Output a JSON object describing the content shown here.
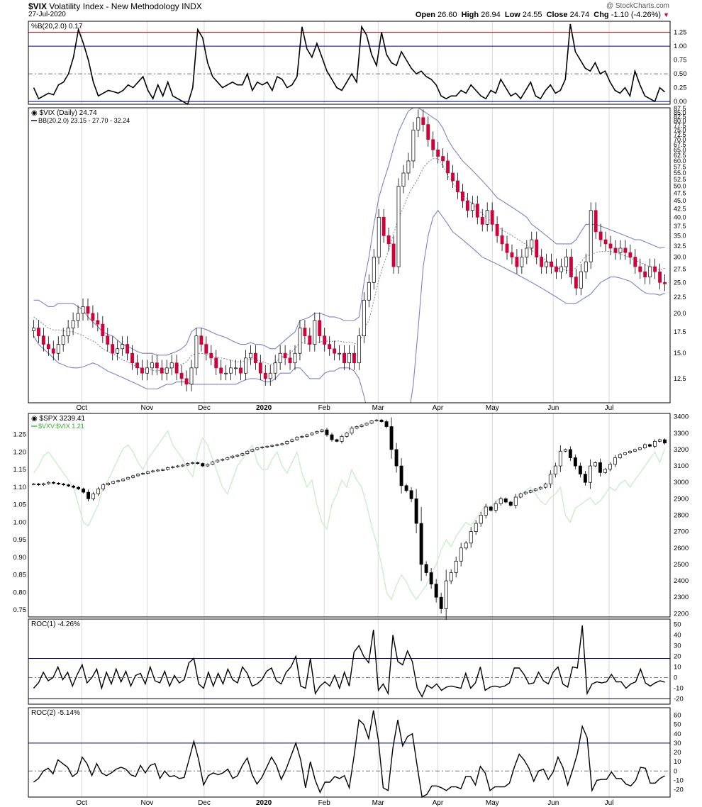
{
  "header": {
    "symbol": "$VIX",
    "name": "Volatility Index - New Methodology",
    "exchange": "INDX",
    "date": "27-Jul-2020",
    "watermark": "@ StockCharts.com",
    "open_label": "Open",
    "open": "26.60",
    "high_label": "High",
    "high": "26.94",
    "low_label": "Low",
    "low": "24.55",
    "close_label": "Close",
    "close": "24.74",
    "chg_label": "Chg",
    "chg": "-1.10 (-4.26%)",
    "chg_arrow": "▼"
  },
  "colors": {
    "up": "#000000",
    "down": "#d00038",
    "bb": "#8080c8",
    "ratio": "#c8f0c8",
    "red_line": "#d00000",
    "blue_line": "#000080"
  },
  "chart_data": [
    {
      "type": "line",
      "name": "pctb_panel",
      "legend": "%B(20,2.0) 0.17",
      "ylim": [
        -0.05,
        1.45
      ],
      "ticks": [
        "1.25",
        "1.00",
        "0.75",
        "0.50",
        "0.25",
        "0.00"
      ],
      "tick_values": [
        1.25,
        1.0,
        0.75,
        0.5,
        0.25,
        0.0
      ],
      "ref_lines": [
        1.25,
        1.0,
        0.5,
        0.0
      ],
      "values": [
        0.25,
        0.05,
        0.1,
        0.15,
        0.12,
        0.3,
        0.35,
        0.5,
        0.8,
        1.3,
        1.05,
        0.75,
        0.35,
        0.1,
        0.15,
        0.2,
        0.18,
        0.15,
        0.2,
        0.3,
        0.25,
        0.35,
        0.45,
        0.2,
        0.05,
        0.3,
        0.1,
        0.35,
        0.1,
        0.05,
        0.0,
        -0.05,
        0.25,
        1.3,
        1.15,
        0.7,
        0.45,
        0.35,
        0.25,
        0.3,
        0.35,
        0.3,
        0.3,
        0.5,
        0.2,
        0.35,
        0.3,
        0.35,
        0.2,
        0.45,
        0.4,
        0.25,
        0.3,
        0.45,
        1.35,
        0.95,
        0.8,
        1.05,
        0.8,
        0.55,
        0.4,
        0.25,
        0.2,
        0.35,
        0.5,
        0.35,
        1.35,
        1.2,
        0.85,
        0.65,
        1.25,
        0.85,
        0.7,
        0.65,
        0.9,
        0.75,
        0.6,
        0.5,
        0.55,
        0.45,
        0.4,
        0.3,
        0.1,
        0.05,
        0.1,
        0.1,
        0.2,
        0.15,
        0.3,
        0.2,
        0.1,
        0.05,
        0.2,
        0.15,
        0.4,
        0.25,
        0.1,
        0.15,
        0.05,
        0.2,
        0.35,
        0.1,
        0.05,
        0.2,
        0.3,
        0.15,
        0.2,
        0.4,
        1.4,
        0.9,
        0.75,
        0.6,
        0.55,
        0.7,
        0.5,
        0.55,
        0.35,
        0.2,
        0.15,
        0.25,
        0.1,
        0.55,
        0.3,
        0.1,
        0.05,
        0.0,
        0.25,
        0.17
      ],
      "xlabels": [
        "Oct",
        "Nov",
        "Dec",
        "2020",
        "Feb",
        "Mar",
        "Apr",
        "May",
        "Jun",
        "Jul"
      ],
      "xlabel_fracs": [
        0.083,
        0.185,
        0.274,
        0.367,
        0.461,
        0.545,
        0.638,
        0.723,
        0.818,
        0.905
      ]
    },
    {
      "type": "candlestick",
      "name": "vix_panel",
      "legend": "$VIX (Daily) 24.74",
      "legend2": "BB(20,2.0) 23.15 - 27.70 - 32.24",
      "ylim": [
        10.5,
        88
      ],
      "log": true,
      "ticks": [
        "87.5",
        "85.0",
        "82.5",
        "80.0",
        "77.5",
        "75.0",
        "72.5",
        "70.0",
        "67.5",
        "65.0",
        "62.5",
        "60.0",
        "57.5",
        "55.0",
        "52.5",
        "50.0",
        "47.5",
        "45.0",
        "42.5",
        "40.0",
        "37.5",
        "35.0",
        "32.5",
        "30.0",
        "27.5",
        "25.0",
        "22.5",
        "20.0",
        "17.5",
        "15.0",
        "12.5"
      ],
      "tick_values": [
        87.5,
        85,
        82.5,
        80,
        77.5,
        75,
        72.5,
        70,
        67.5,
        65,
        62.5,
        60,
        57.5,
        55,
        52.5,
        50,
        47.5,
        45,
        42.5,
        40,
        37.5,
        35,
        32.5,
        30,
        27.5,
        25,
        22.5,
        20,
        17.5,
        15,
        12.5
      ],
      "close": [
        18,
        17,
        16,
        15.5,
        15,
        16,
        17,
        18,
        19,
        20,
        21,
        20,
        19,
        18.5,
        17,
        16,
        15,
        15.5,
        16,
        15,
        14,
        13.5,
        13,
        13.5,
        14,
        13.5,
        13,
        13.5,
        14,
        13,
        12.5,
        12,
        13.5,
        17,
        16,
        15,
        14.5,
        13.5,
        13,
        13,
        13.5,
        13.5,
        13,
        14.5,
        15,
        14,
        13,
        12.5,
        13,
        14,
        15,
        14.5,
        14,
        15,
        18,
        17,
        16,
        19,
        17,
        16,
        15.5,
        15,
        15,
        14,
        15,
        14,
        17,
        22,
        25,
        30,
        40,
        35,
        33,
        28,
        50,
        55,
        60,
        75,
        82,
        78,
        70,
        65,
        62,
        60,
        55,
        52,
        48,
        45,
        42,
        44,
        40,
        38,
        42,
        38,
        35,
        33,
        31,
        30,
        28,
        30,
        32,
        34,
        30,
        28,
        29,
        28,
        27,
        28,
        30,
        26,
        24,
        27,
        29,
        42,
        36,
        34,
        33,
        32,
        31,
        32,
        31,
        30,
        28,
        27,
        26,
        28,
        27,
        25,
        24.74
      ],
      "bb_upper": [
        22,
        22,
        21.5,
        21,
        21,
        21.5,
        21.5,
        21.5,
        21.5,
        21,
        20.5,
        19.5,
        18.8,
        18.2,
        17.5,
        17.2,
        17,
        16.5,
        16,
        15.8,
        15.5,
        15.2,
        15,
        15,
        15,
        14.8,
        14.8,
        14.8,
        15,
        15.2,
        15.5,
        16,
        17.5,
        18,
        18,
        17.8,
        17.5,
        17.2,
        17,
        16.8,
        16.5,
        16.2,
        16,
        16,
        16.2,
        16,
        16,
        15.8,
        15.5,
        15.5,
        16,
        16.5,
        17,
        17.5,
        19,
        19.2,
        19.5,
        20,
        20,
        19.8,
        19.5,
        19.5,
        19.3,
        19,
        19,
        19,
        19.5,
        25,
        30,
        38,
        46,
        52,
        58,
        66,
        74,
        80,
        86,
        88,
        88,
        86,
        84,
        82,
        80,
        76,
        70,
        66,
        63,
        60,
        58,
        56,
        54,
        52,
        50,
        48,
        46,
        45,
        44,
        43,
        42,
        41,
        40,
        38,
        37,
        36,
        35,
        34,
        33,
        33,
        33,
        33,
        34,
        36,
        38,
        38,
        38,
        37.5,
        37,
        36.5,
        36,
        35.5,
        35,
        34.5,
        34,
        34,
        33.5,
        33,
        32.5,
        32,
        32.24
      ],
      "bb_lower": [
        17,
        16,
        15.5,
        15,
        14.5,
        14,
        13.8,
        13.6,
        13.5,
        13.5,
        13.6,
        13.8,
        14,
        13.8,
        13.5,
        13.2,
        13,
        12.8,
        12.6,
        12.4,
        12.2,
        12,
        11.8,
        11.6,
        11.6,
        11.6,
        11.8,
        12,
        12,
        12.2,
        12.2,
        12.2,
        12,
        12,
        12,
        12,
        12,
        12,
        12,
        12,
        12,
        12,
        12.2,
        12.4,
        12.5,
        12.5,
        12.4,
        12.2,
        12.2,
        12.5,
        13,
        13,
        13,
        13.5,
        13.5,
        13,
        12.5,
        12.5,
        12.5,
        13,
        13.2,
        13.2,
        13.5,
        13.5,
        13.5,
        13.2,
        12.5,
        11,
        8,
        6,
        5,
        5,
        5,
        5,
        5,
        6,
        8,
        12,
        18,
        28,
        35,
        40,
        42,
        40,
        38,
        36,
        35,
        34,
        33,
        32,
        31,
        30,
        29.5,
        29,
        28.5,
        28,
        27.5,
        27,
        26.5,
        26,
        25.5,
        25,
        24.5,
        24,
        23.5,
        23,
        22.5,
        22,
        21.5,
        21.5,
        21.5,
        22,
        22.5,
        23,
        24,
        25,
        25.5,
        26,
        26,
        25.8,
        25.5,
        25.2,
        24.5,
        23.8,
        23.2,
        23,
        23,
        22.8,
        23.15
      ],
      "xlabels": [
        "Oct",
        "Nov",
        "Dec",
        "2020",
        "Feb",
        "Mar",
        "Apr",
        "May",
        "Jun",
        "Jul"
      ]
    },
    {
      "type": "candlestick",
      "name": "spx_panel",
      "legend": "$SPX 3239.41",
      "legend2": "$VXV:$VIX 1.21",
      "ylim_right": [
        2180,
        3420
      ],
      "ticks_right": [
        "3400",
        "3300",
        "3200",
        "3100",
        "3000",
        "2900",
        "2800",
        "2700",
        "2600",
        "2500",
        "2400",
        "2300",
        "2200"
      ],
      "tick_values_right": [
        3400,
        3300,
        3200,
        3100,
        3000,
        2900,
        2800,
        2700,
        2600,
        2500,
        2400,
        2300,
        2200
      ],
      "ylim_left": [
        0.73,
        1.31
      ],
      "ticks_left": [
        "1.25",
        "1.20",
        "1.15",
        "1.10",
        "1.05",
        "1.00",
        "0.95",
        "0.90",
        "0.85",
        "0.80",
        "0.75"
      ],
      "tick_values_left": [
        1.25,
        1.2,
        1.15,
        1.1,
        1.05,
        1.0,
        0.95,
        0.9,
        0.85,
        0.8,
        0.75
      ],
      "spx_close": [
        2990,
        2985,
        2992,
        3000,
        2995,
        2990,
        2985,
        2978,
        2970,
        2960,
        2940,
        2900,
        2930,
        2960,
        2985,
        2995,
        3005,
        3010,
        3020,
        3030,
        3040,
        3050,
        3055,
        3065,
        3070,
        3075,
        3078,
        3090,
        3095,
        3100,
        3105,
        3115,
        3120,
        3115,
        3100,
        3110,
        3125,
        3135,
        3140,
        3150,
        3160,
        3165,
        3175,
        3190,
        3200,
        3210,
        3215,
        3220,
        3225,
        3230,
        3235,
        3250,
        3260,
        3275,
        3280,
        3290,
        3300,
        3310,
        3320,
        3290,
        3260,
        3250,
        3280,
        3300,
        3330,
        3340,
        3350,
        3360,
        3375,
        3380,
        3370,
        3340,
        3200,
        3100,
        2980,
        2950,
        2900,
        2750,
        2500,
        2450,
        2380,
        2300,
        2230,
        2400,
        2450,
        2520,
        2600,
        2630,
        2700,
        2750,
        2800,
        2850,
        2830,
        2870,
        2900,
        2880,
        2860,
        2910,
        2930,
        2940,
        2950,
        2960,
        2970,
        2990,
        3050,
        3100,
        3190,
        3200,
        3150,
        3100,
        3050,
        3000,
        3100,
        3120,
        3060,
        3080,
        3110,
        3150,
        3170,
        3180,
        3190,
        3200,
        3210,
        3230,
        3220,
        3250,
        3260,
        3239.41
      ],
      "ratio": [
        1.14,
        1.16,
        1.19,
        1.2,
        1.18,
        1.16,
        1.14,
        1.12,
        1.1,
        1.05,
        1.0,
        0.99,
        1.02,
        1.05,
        1.1,
        1.12,
        1.15,
        1.18,
        1.21,
        1.22,
        1.2,
        1.17,
        1.15,
        1.18,
        1.2,
        1.22,
        1.24,
        1.26,
        1.22,
        1.2,
        1.18,
        1.15,
        1.13,
        1.2,
        1.24,
        1.22,
        1.18,
        1.14,
        1.1,
        1.08,
        1.12,
        1.16,
        1.18,
        1.2,
        1.22,
        1.17,
        1.15,
        1.15,
        1.18,
        1.2,
        1.16,
        1.14,
        1.17,
        1.2,
        1.14,
        1.1,
        1.12,
        1.05,
        1.0,
        0.98,
        1.05,
        1.08,
        1.12,
        1.1,
        1.15,
        1.12,
        1.1,
        1.05,
        0.99,
        0.94,
        0.88,
        0.8,
        0.78,
        0.82,
        0.85,
        0.83,
        0.8,
        0.78,
        0.8,
        0.82,
        0.85,
        0.88,
        0.92,
        0.95,
        0.93,
        0.96,
        0.98,
        1.0,
        0.99,
        1.01,
        1.03,
        1.05,
        1.04,
        1.06,
        1.07,
        1.06,
        1.05,
        1.07,
        1.08,
        1.09,
        1.1,
        1.08,
        1.06,
        1.05,
        1.07,
        1.08,
        1.1,
        1.02,
        1.0,
        1.04,
        1.05,
        1.06,
        1.07,
        1.05,
        1.06,
        1.08,
        1.1,
        1.09,
        1.11,
        1.12,
        1.1,
        1.12,
        1.14,
        1.16,
        1.18,
        1.2,
        1.17,
        1.21
      ],
      "xlabels": [
        "Oct",
        "Nov",
        "Dec",
        "2020",
        "Feb",
        "Mar",
        "Apr",
        "May",
        "Jun",
        "Jul"
      ]
    },
    {
      "type": "line",
      "name": "roc1_panel",
      "legend": "ROC(1) -4.26%",
      "ylim": [
        -25,
        55
      ],
      "ticks": [
        "50",
        "40",
        "30",
        "20",
        "10",
        "0",
        "-10",
        "-20"
      ],
      "tick_values": [
        50,
        40,
        30,
        20,
        10,
        0,
        -10,
        -20
      ],
      "ref_lines": [
        18,
        0,
        -20
      ],
      "values": [
        -10,
        -5,
        5,
        -3,
        0,
        10,
        -2,
        5,
        -8,
        3,
        12,
        -5,
        0,
        8,
        -10,
        5,
        -6,
        8,
        -4,
        6,
        -8,
        2,
        4,
        -6,
        10,
        -3,
        -5,
        6,
        -8,
        2,
        -5,
        -2,
        14,
        18,
        -6,
        -10,
        5,
        -8,
        4,
        -6,
        8,
        -2,
        -5,
        10,
        4,
        -8,
        -6,
        -2,
        6,
        9,
        -3,
        -6,
        5,
        10,
        20,
        -8,
        -10,
        18,
        -15,
        -8,
        -4,
        -8,
        2,
        -10,
        5,
        -8,
        24,
        30,
        20,
        14,
        45,
        -12,
        -6,
        -15,
        40,
        15,
        12,
        25,
        15,
        -10,
        -18,
        -7,
        -10,
        -6,
        -12,
        -9,
        -8,
        -9,
        -10,
        4,
        -10,
        -5,
        10,
        -12,
        -9,
        -8,
        -9,
        -8,
        -5,
        9,
        9,
        3,
        -6,
        -5,
        5,
        -3,
        -6,
        5,
        10,
        -6,
        -9,
        10,
        9,
        49,
        -15,
        -6,
        -4,
        -5,
        -4,
        3,
        -4,
        -4,
        -10,
        -6,
        -4,
        8,
        -5,
        -8,
        -5,
        -3,
        -4.26
      ]
    },
    {
      "type": "line",
      "name": "roc2_panel",
      "legend": "ROC(2) -5.14%",
      "ylim": [
        -28,
        68
      ],
      "ticks": [
        "60",
        "50",
        "40",
        "30",
        "20",
        "10",
        "0",
        "-10",
        "-20"
      ],
      "tick_values": [
        60,
        50,
        40,
        30,
        20,
        10,
        0,
        -10,
        -20
      ],
      "ref_lines": [
        30,
        0
      ],
      "values": [
        -12,
        -8,
        0,
        3,
        -3,
        12,
        8,
        4,
        -6,
        -2,
        15,
        8,
        -5,
        8,
        -2,
        -5,
        -2,
        2,
        4,
        2,
        -4,
        -6,
        6,
        -2,
        6,
        8,
        -8,
        0,
        -6,
        -5,
        -8,
        -7,
        12,
        32,
        12,
        -15,
        -5,
        -2,
        -4,
        -2,
        2,
        -8,
        -5,
        6,
        14,
        -4,
        -14,
        -7,
        4,
        15,
        6,
        -9,
        2,
        16,
        30,
        12,
        -18,
        10,
        -10,
        -23,
        -12,
        -12,
        -6,
        -8,
        -5,
        -18,
        16,
        55,
        50,
        35,
        65,
        33,
        -18,
        -21,
        25,
        55,
        27,
        37,
        40,
        5,
        -28,
        -25,
        -16,
        -16,
        -18,
        -21,
        -17,
        -17,
        -19,
        -6,
        -6,
        -15,
        5,
        -2,
        -21,
        -17,
        -17,
        -17,
        -13,
        4,
        18,
        12,
        3,
        -11,
        0,
        2,
        -9,
        -1,
        15,
        4,
        -15,
        1,
        19,
        48,
        36,
        -21,
        -10,
        -9,
        -9,
        -1,
        -8,
        -8,
        -14,
        -16,
        -10,
        4,
        3,
        -13,
        -13,
        -8,
        -5.14
      ]
    }
  ]
}
